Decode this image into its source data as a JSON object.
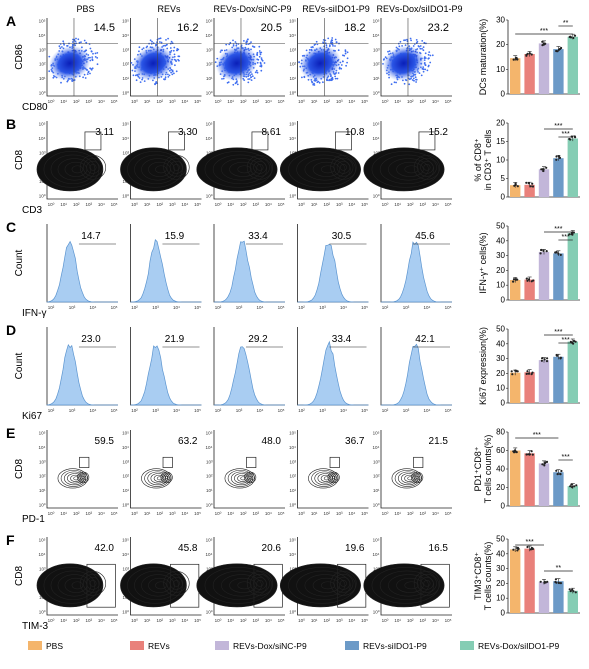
{
  "groups": [
    "PBS",
    "REVs",
    "REVs-Dox/siNC-P9",
    "REVs-siIDO1-P9",
    "REVs-Dox/siIDO1-P9"
  ],
  "group_colors": [
    "#f4b56c",
    "#e9817b",
    "#c2b6d9",
    "#6c9ac7",
    "#85cdb4"
  ],
  "panels": [
    {
      "letter": "A",
      "plot": "dot",
      "x_label": "CD80",
      "y_label": "CD86",
      "values": [
        "14.5",
        "16.2",
        "20.5",
        "18.2",
        "23.2"
      ],
      "sig": [
        "**",
        "***"
      ]
    },
    {
      "letter": "B",
      "plot": "contour",
      "x_label": "CD3",
      "y_label": "CD8",
      "values": [
        "3.11",
        "3.30",
        "8.61",
        "10.8",
        "15.2"
      ],
      "sig": [
        "***",
        "***"
      ]
    },
    {
      "letter": "C",
      "plot": "hist",
      "x_label": "IFN-γ",
      "y_label": "Count",
      "values": [
        "14.7",
        "15.9",
        "33.4",
        "30.5",
        "45.6"
      ],
      "sig": [
        "***",
        "***"
      ]
    },
    {
      "letter": "D",
      "plot": "hist",
      "x_label": "Ki67",
      "y_label": "Count",
      "values": [
        "23.0",
        "21.9",
        "29.2",
        "33.4",
        "42.1"
      ],
      "sig": [
        "***",
        "***"
      ]
    },
    {
      "letter": "E",
      "plot": "small",
      "x_label": "PD-1",
      "y_label": "CD8",
      "values": [
        "59.5",
        "63.2",
        "48.0",
        "36.7",
        "21.5"
      ],
      "sig": [
        "***",
        "***"
      ]
    },
    {
      "letter": "F",
      "plot": "large",
      "x_label": "TIM-3",
      "y_label": "CD8",
      "values": [
        "42.0",
        "45.8",
        "20.6",
        "19.6",
        "16.5"
      ],
      "sig": [
        "***",
        "**"
      ]
    }
  ],
  "chart_data": [
    {
      "type": "bar",
      "panel": "A",
      "categories": [
        "PBS",
        "REVs",
        "REVs-Dox/siNC-P9",
        "REVs-siIDO1-P9",
        "REVs-Dox/siIDO1-P9"
      ],
      "values": [
        14.5,
        16.2,
        20.5,
        18.2,
        23.2
      ],
      "ylabel": "DCs maturation(%)",
      "ylim": [
        0,
        30
      ],
      "yticks": [
        0,
        10,
        20,
        30
      ]
    },
    {
      "type": "bar",
      "panel": "B",
      "categories": [
        "PBS",
        "REVs",
        "REVs-Dox/siNC-P9",
        "REVs-siIDO1-P9",
        "REVs-Dox/siIDO1-P9"
      ],
      "values": [
        3.2,
        3.3,
        7.5,
        10.5,
        15.8
      ],
      "ylabel": [
        "% of CD8⁺",
        "in CD3⁺ T cells"
      ],
      "ylim": [
        0,
        20
      ],
      "yticks": [
        0,
        5,
        10,
        15,
        20
      ]
    },
    {
      "type": "bar",
      "panel": "C",
      "categories": [
        "PBS",
        "REVs",
        "REVs-Dox/siNC-P9",
        "REVs-siIDO1-P9",
        "REVs-Dox/siIDO1-P9"
      ],
      "values": [
        13.5,
        13.8,
        32.5,
        31.5,
        45.2
      ],
      "ylabel": "IFN-γ⁺ cells(%)",
      "ylim": [
        0,
        50
      ],
      "yticks": [
        0,
        10,
        20,
        30,
        40,
        50
      ]
    },
    {
      "type": "bar",
      "panel": "D",
      "categories": [
        "PBS",
        "REVs",
        "REVs-Dox/siNC-P9",
        "REVs-siIDO1-P9",
        "REVs-Dox/siIDO1-P9"
      ],
      "values": [
        20.5,
        20.8,
        29.0,
        31.2,
        41.5
      ],
      "ylabel": "Ki67 expression(%)",
      "ylim": [
        0,
        50
      ],
      "yticks": [
        0,
        10,
        20,
        30,
        40,
        50
      ]
    },
    {
      "type": "bar",
      "panel": "E",
      "categories": [
        "PBS",
        "REVs",
        "REVs-Dox/siNC-P9",
        "REVs-siIDO1-P9",
        "REVs-Dox/siIDO1-P9"
      ],
      "values": [
        60,
        57,
        46,
        36.5,
        21.5
      ],
      "ylabel": [
        "PD1⁺CD8⁺",
        "T cells counts(%)"
      ],
      "ylim": [
        0,
        80
      ],
      "yticks": [
        0,
        20,
        40,
        60,
        80
      ]
    },
    {
      "type": "bar",
      "panel": "F",
      "categories": [
        "PBS",
        "REVs",
        "REVs-Dox/siNC-P9",
        "REVs-siIDO1-P9",
        "REVs-Dox/siIDO1-P9"
      ],
      "values": [
        43,
        43.5,
        21,
        21.5,
        15
      ],
      "ylabel": [
        "TIM3⁺CD8⁺",
        "T cells counts(%)"
      ],
      "ylim": [
        0,
        50
      ],
      "yticks": [
        0,
        10,
        20,
        30,
        40,
        50
      ]
    }
  ]
}
